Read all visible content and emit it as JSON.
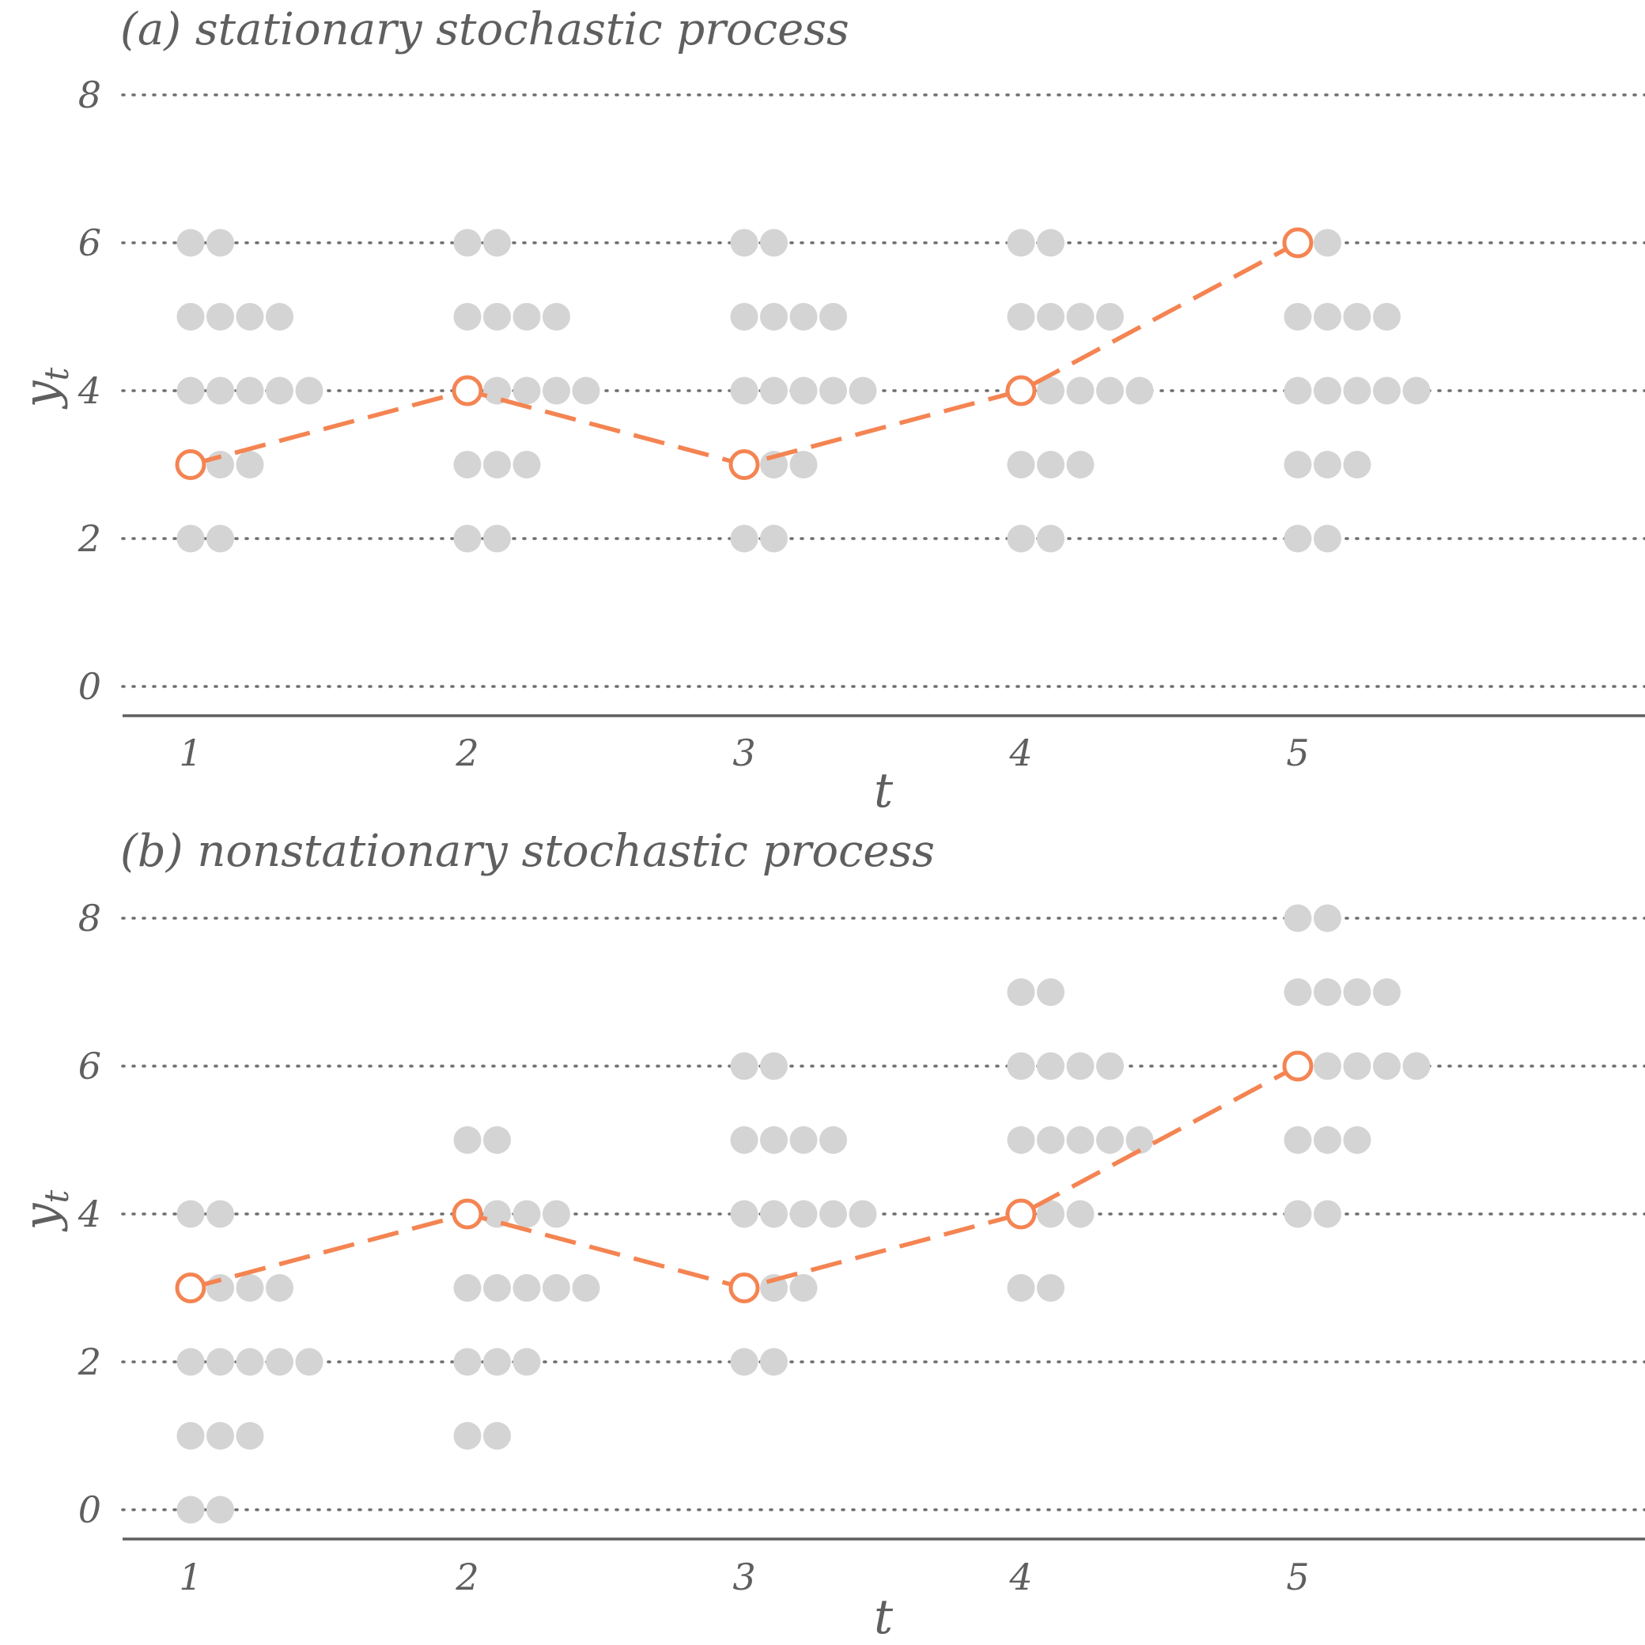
{
  "chart_data": [
    {
      "type": "scatter",
      "title": "(a) stationary stochastic process",
      "xlabel": "t",
      "ylabel": "y",
      "ylabel_subscript": "t",
      "x_ticks": [
        "1",
        "2",
        "3",
        "4",
        "5"
      ],
      "y_ticks": [
        "0",
        "2",
        "4",
        "6",
        "8"
      ],
      "ylim": [
        0,
        8
      ],
      "grid": "horizontal dotted",
      "dot_counts": [
        {
          "t": 1,
          "counts": [
            {
              "y": 6,
              "n": 2
            },
            {
              "y": 5,
              "n": 4
            },
            {
              "y": 4,
              "n": 5
            },
            {
              "y": 3,
              "n": 3
            },
            {
              "y": 2,
              "n": 2
            }
          ]
        },
        {
          "t": 2,
          "counts": [
            {
              "y": 6,
              "n": 2
            },
            {
              "y": 5,
              "n": 4
            },
            {
              "y": 4,
              "n": 5
            },
            {
              "y": 3,
              "n": 3
            },
            {
              "y": 2,
              "n": 2
            }
          ]
        },
        {
          "t": 3,
          "counts": [
            {
              "y": 6,
              "n": 2
            },
            {
              "y": 5,
              "n": 4
            },
            {
              "y": 4,
              "n": 5
            },
            {
              "y": 3,
              "n": 3
            },
            {
              "y": 2,
              "n": 2
            }
          ]
        },
        {
          "t": 4,
          "counts": [
            {
              "y": 6,
              "n": 2
            },
            {
              "y": 5,
              "n": 4
            },
            {
              "y": 4,
              "n": 5
            },
            {
              "y": 3,
              "n": 3
            },
            {
              "y": 2,
              "n": 2
            }
          ]
        },
        {
          "t": 5,
          "counts": [
            {
              "y": 6,
              "n": 2
            },
            {
              "y": 5,
              "n": 4
            },
            {
              "y": 4,
              "n": 5
            },
            {
              "y": 3,
              "n": 3
            },
            {
              "y": 2,
              "n": 2
            }
          ]
        }
      ],
      "realization": {
        "x": [
          1,
          2,
          3,
          4,
          5
        ],
        "y": [
          3,
          4,
          3,
          4,
          6
        ]
      }
    },
    {
      "type": "scatter",
      "title": "(b) nonstationary stochastic process",
      "xlabel": "t",
      "ylabel": "y",
      "ylabel_subscript": "t",
      "x_ticks": [
        "1",
        "2",
        "3",
        "4",
        "5"
      ],
      "y_ticks": [
        "0",
        "2",
        "4",
        "6",
        "8"
      ],
      "ylim": [
        0,
        8
      ],
      "grid": "horizontal dotted",
      "dot_counts": [
        {
          "t": 1,
          "counts": [
            {
              "y": 4,
              "n": 2
            },
            {
              "y": 3,
              "n": 4
            },
            {
              "y": 2,
              "n": 5
            },
            {
              "y": 1,
              "n": 3
            },
            {
              "y": 0,
              "n": 2
            }
          ]
        },
        {
          "t": 2,
          "counts": [
            {
              "y": 5,
              "n": 2
            },
            {
              "y": 4,
              "n": 4
            },
            {
              "y": 3,
              "n": 5
            },
            {
              "y": 2,
              "n": 3
            },
            {
              "y": 1,
              "n": 2
            }
          ]
        },
        {
          "t": 3,
          "counts": [
            {
              "y": 6,
              "n": 2
            },
            {
              "y": 5,
              "n": 4
            },
            {
              "y": 4,
              "n": 5
            },
            {
              "y": 3,
              "n": 3
            },
            {
              "y": 2,
              "n": 2
            }
          ]
        },
        {
          "t": 4,
          "counts": [
            {
              "y": 7,
              "n": 2
            },
            {
              "y": 6,
              "n": 4
            },
            {
              "y": 5,
              "n": 5
            },
            {
              "y": 4,
              "n": 3
            },
            {
              "y": 3,
              "n": 2
            }
          ]
        },
        {
          "t": 5,
          "counts": [
            {
              "y": 8,
              "n": 2
            },
            {
              "y": 7,
              "n": 4
            },
            {
              "y": 6,
              "n": 5
            },
            {
              "y": 5,
              "n": 3
            },
            {
              "y": 4,
              "n": 2
            }
          ]
        }
      ],
      "realization": {
        "x": [
          1,
          2,
          3,
          4,
          5
        ],
        "y": [
          3,
          4,
          3,
          4,
          6
        ]
      }
    }
  ],
  "colors": {
    "dots": "#d4d4d4",
    "realization": "#f48452",
    "text": "#5f5f5f",
    "grid": "#6e6e6e"
  }
}
